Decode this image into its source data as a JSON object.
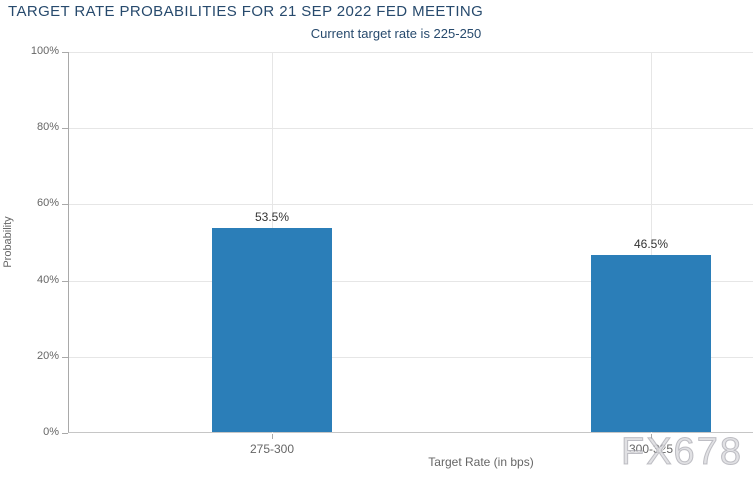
{
  "chart_data": {
    "type": "bar",
    "title": "TARGET RATE PROBABILITIES FOR 21 SEP 2022 FED MEETING",
    "subtitle": "Current target rate is 225-250",
    "categories": [
      "275-300",
      "300-325"
    ],
    "values": [
      53.5,
      46.5
    ],
    "value_labels": [
      "53.5%",
      "46.5%"
    ],
    "xlabel": "Target Rate (in bps)",
    "ylabel": "Probability",
    "ylim": [
      0,
      100
    ],
    "yticks": [
      0,
      20,
      40,
      60,
      80,
      100
    ],
    "ytick_labels": [
      "0%",
      "20%",
      "40%",
      "60%",
      "80%",
      "100%"
    ],
    "grid": true,
    "legend": "none"
  },
  "watermark": {
    "text": "FX678"
  },
  "colors": {
    "title_text": "#274a6d",
    "axis_label": "#666666",
    "data_label": "#333333",
    "bar": "#2b7eb8",
    "gridline": "#e6e6e6",
    "y_axis_line": "#a9a9a9",
    "x_axis_line": "#c6c6c6",
    "background": "#ffffff"
  }
}
